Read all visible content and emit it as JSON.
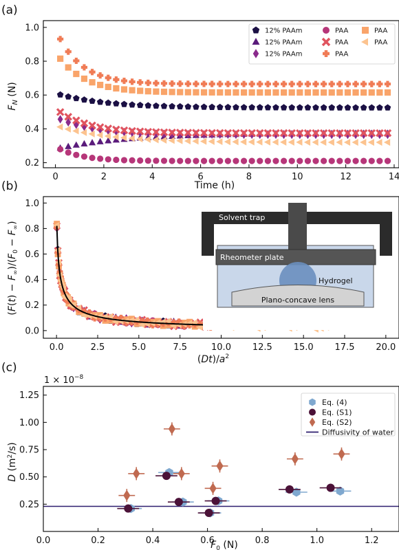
{
  "panels": {
    "a": {
      "label": "(a)"
    },
    "b": {
      "label": "(b)"
    },
    "c": {
      "label": "(c)"
    }
  },
  "inset": {
    "solvent_trap": "Solvent trap",
    "rheometer_plate": "Rheometer plate",
    "hydrogel": "Hydrogel",
    "lens": "Plano-concave lens"
  },
  "colors": {
    "paam_dark": "#1b1044",
    "paam_purple": "#5a1b7b",
    "paam_violet": "#8a2a8c",
    "paa_magenta": "#b63679",
    "paa_red": "#e0545f",
    "paa_orange": "#f07c56",
    "paa_peach": "#f9a46a",
    "paa_light": "#fcc38f",
    "eq4": "#7fa8cf",
    "eqS1": "#4b1238",
    "eqS2": "#c06a50",
    "water": "#2d1d6e"
  },
  "chart_data": [
    {
      "type": "scatter",
      "panel": "a",
      "xlabel": "Time (h)",
      "ylabel": "F_N (N)",
      "xlim": [
        -0.5,
        14.2
      ],
      "ylim": [
        0.17,
        1.04
      ],
      "xticks": [
        0,
        2,
        4,
        6,
        8,
        10,
        12,
        14
      ],
      "yticks": [
        0.2,
        0.4,
        0.6,
        0.8,
        1.0
      ],
      "tick_labels_x": [
        "0",
        "2",
        "4",
        "6",
        "8",
        "10",
        "12",
        "14"
      ],
      "tick_labels_y": [
        "0.2",
        "0.4",
        "0.6",
        "0.8",
        "1.0"
      ],
      "legend_position": "top-right",
      "series": [
        {
          "name": "12% PAAm",
          "marker": "pentagon",
          "color": "#1b1044",
          "start": 0.61,
          "end": 0.525,
          "tau": 2.0
        },
        {
          "name": "12% PAAm",
          "marker": "triangle",
          "color": "#5a1b7b",
          "start": 0.28,
          "end": 0.375,
          "tau": 3.0
        },
        {
          "name": "12% PAAm",
          "marker": "diamond",
          "color": "#8a2a8c",
          "start": 0.47,
          "end": 0.365,
          "tau": 1.5
        },
        {
          "name": "PAA",
          "marker": "circle",
          "color": "#b63679",
          "start": 0.295,
          "end": 0.21,
          "tau": 1.0
        },
        {
          "name": "PAA",
          "marker": "x",
          "color": "#e0545f",
          "start": 0.52,
          "end": 0.375,
          "tau": 1.3
        },
        {
          "name": "PAA",
          "marker": "plus",
          "color": "#f07c56",
          "start": 0.99,
          "end": 0.665,
          "tau": 1.0
        },
        {
          "name": "PAA",
          "marker": "square",
          "color": "#f9a46a",
          "start": 0.855,
          "end": 0.615,
          "tau": 1.1
        },
        {
          "name": "PAA",
          "marker": "triangle-left",
          "color": "#fcc38f",
          "start": 0.42,
          "end": 0.32,
          "tau": 2.2
        }
      ]
    },
    {
      "type": "scatter",
      "panel": "b",
      "xlabel": "(Dt)/a²",
      "ylabel": "(F(t) − F∞)/(F₀ − F∞)",
      "xlim": [
        -0.8,
        20.8
      ],
      "ylim": [
        -0.06,
        1.05
      ],
      "xticks": [
        0,
        2.5,
        5,
        7.5,
        10,
        12.5,
        15,
        17.5,
        20
      ],
      "yticks": [
        0,
        0.2,
        0.4,
        0.6,
        0.8,
        1.0
      ],
      "tick_labels_x": [
        "0.0",
        "2.5",
        "5.0",
        "7.5",
        "10.0",
        "12.5",
        "15.0",
        "17.5",
        "20.0"
      ],
      "tick_labels_y": [
        "0.0",
        "0.2",
        "0.4",
        "0.6",
        "0.8",
        "1.0"
      ],
      "series": [
        {
          "marker": "diamond",
          "color": "#8a2a8c",
          "xmax": 4.8
        },
        {
          "marker": "triangle",
          "color": "#5a1b7b",
          "xmax": 7.5
        },
        {
          "marker": "pentagon",
          "color": "#1b1044",
          "xmax": 8.0
        },
        {
          "marker": "circle",
          "color": "#b63679",
          "xmax": 7.8
        },
        {
          "marker": "x",
          "color": "#e0545f",
          "xmax": 9.5
        },
        {
          "marker": "square",
          "color": "#f9a46a",
          "xmax": 10.0
        },
        {
          "marker": "plus",
          "color": "#f07c56",
          "xmax": 10.0
        },
        {
          "marker": "triangle-left",
          "color": "#fcc38f",
          "xmax": 17.5
        }
      ],
      "fit_curve": {
        "color": "#000000"
      }
    },
    {
      "type": "scatter",
      "panel": "c",
      "xlabel": "F₀ (N)",
      "ylabel": "D (m²/s)",
      "scale_label": "1e−8",
      "xlim": [
        0,
        1.3
      ],
      "ylim": [
        0,
        1.33
      ],
      "xticks": [
        0,
        0.2,
        0.4,
        0.6,
        0.8,
        1.0,
        1.2
      ],
      "yticks": [
        0.25,
        0.5,
        0.75,
        1.0,
        1.25
      ],
      "tick_labels_x": [
        "0.0",
        "0.2",
        "0.4",
        "0.6",
        "0.8",
        "1.0",
        "1.2"
      ],
      "tick_labels_y": [
        "0.25",
        "0.50",
        "0.75",
        "1.00",
        "1.25"
      ],
      "legend_position": "top-right",
      "water_diffusivity": 0.23,
      "series": [
        {
          "name": "Eq. (4)",
          "marker": "hexagon",
          "color": "#7fa8cf",
          "points": [
            [
              0.32,
              0.21
            ],
            [
              0.46,
              0.54
            ],
            [
              0.51,
              0.27
            ],
            [
              0.61,
              0.17
            ],
            [
              0.64,
              0.28
            ],
            [
              0.925,
              0.36
            ],
            [
              1.085,
              0.37
            ]
          ],
          "xerr": 0.04,
          "yerr": 0.03
        },
        {
          "name": "Eq. (S1)",
          "marker": "circle",
          "color": "#4b1238",
          "points": [
            [
              0.31,
              0.21
            ],
            [
              0.45,
              0.51
            ],
            [
              0.495,
              0.27
            ],
            [
              0.605,
              0.17
            ],
            [
              0.63,
              0.28
            ],
            [
              0.9,
              0.385
            ],
            [
              1.05,
              0.4
            ]
          ],
          "xerr": 0.04,
          "yerr": 0.02
        },
        {
          "name": "Eq. (S2)",
          "marker": "diamond",
          "color": "#c06a50",
          "points": [
            [
              0.305,
              0.33
            ],
            [
              0.34,
              0.53
            ],
            [
              0.47,
              0.94
            ],
            [
              0.505,
              0.53
            ],
            [
              0.62,
              0.395
            ],
            [
              0.645,
              0.6
            ],
            [
              0.92,
              0.665
            ],
            [
              1.09,
              0.71
            ]
          ],
          "xerr": 0.03,
          "yerr": 0.06
        },
        {
          "name": "Diffusivity of water",
          "marker": "line",
          "color": "#2d1d6e"
        }
      ]
    }
  ]
}
